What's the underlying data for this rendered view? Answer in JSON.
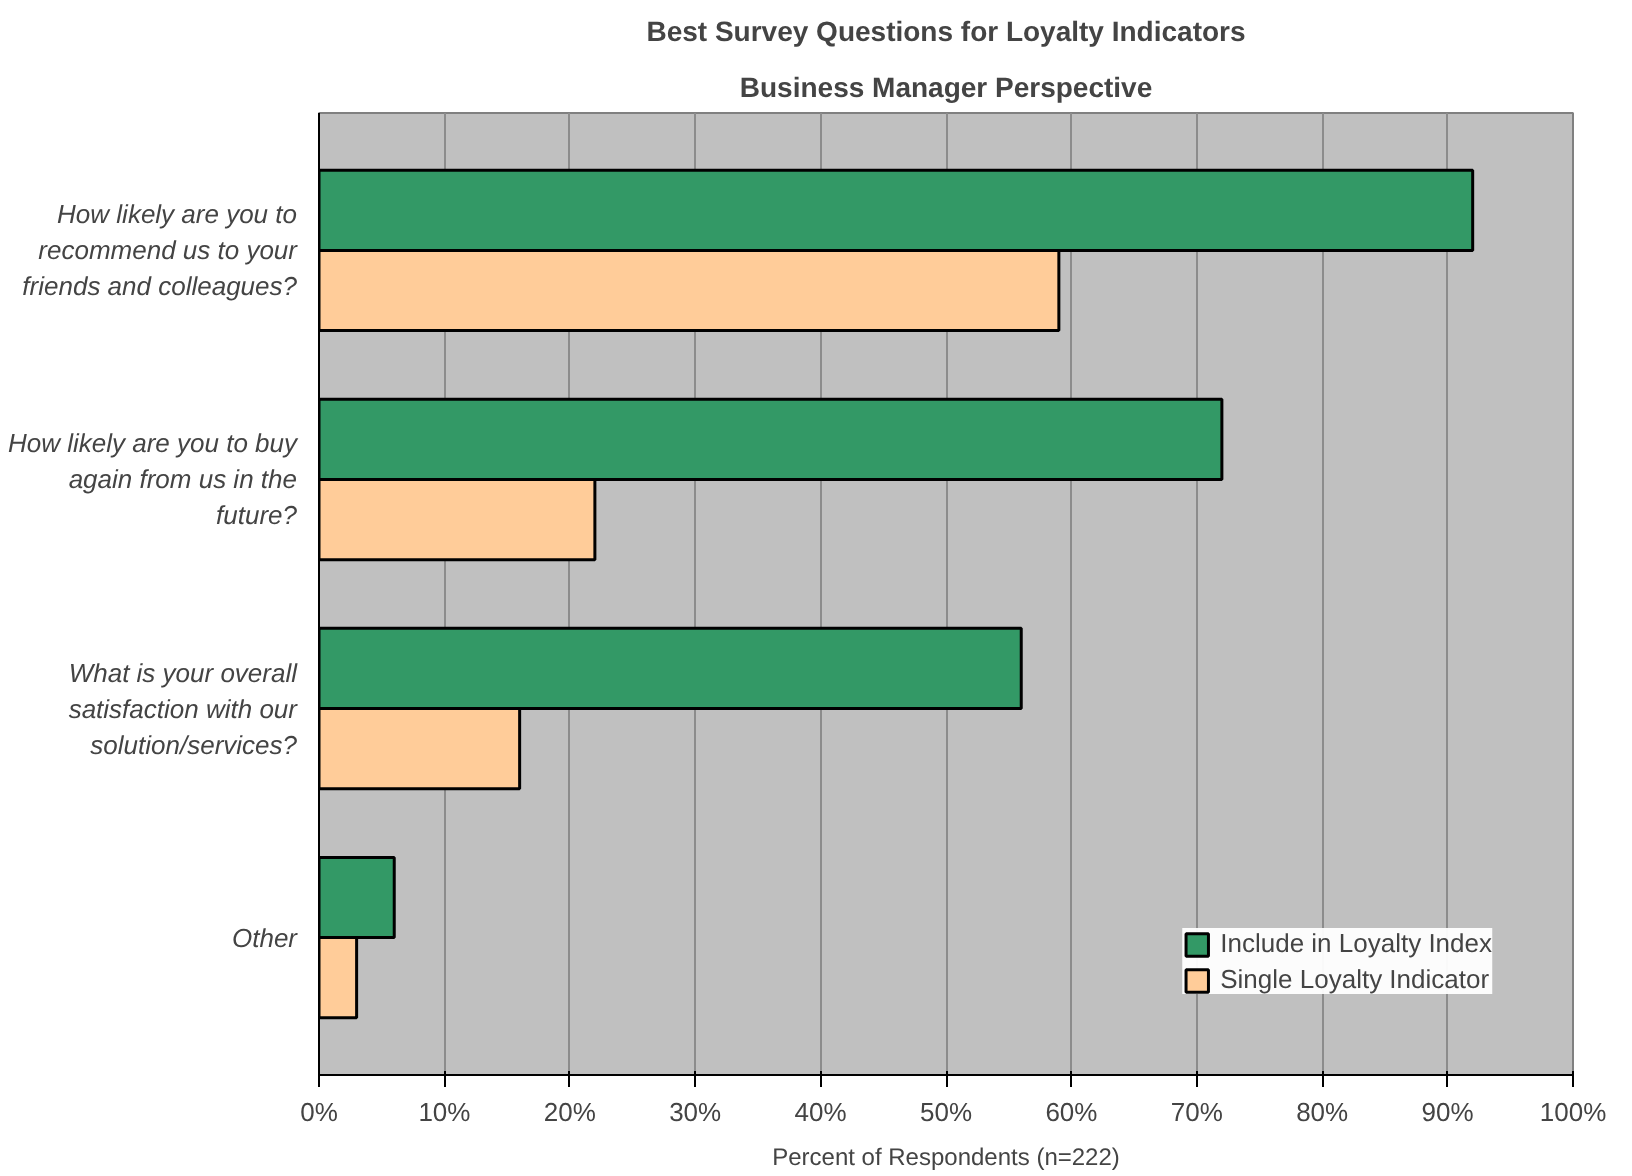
{
  "chart_data": {
    "type": "bar",
    "orientation": "horizontal",
    "title": "Best Survey Questions for Loyalty Indicators",
    "subtitle": "Business Manager Perspective",
    "xlabel": "Percent of Respondents (n=222)",
    "categories": [
      "How likely are you to recommend us to your friends and colleagues?",
      "How likely are you to buy again from us in the future?",
      "What is your overall satisfaction with our solution/services?",
      "Other"
    ],
    "series": [
      {
        "name": "Include in Loyalty Index",
        "color": "#339966",
        "values": [
          92,
          72,
          56,
          6
        ]
      },
      {
        "name": "Single Loyalty Indicator",
        "color": "#ffcc99",
        "values": [
          59,
          22,
          16,
          3
        ]
      }
    ],
    "xlim": [
      0,
      100
    ],
    "xticks": [
      {
        "value": 0,
        "label": "0%"
      },
      {
        "value": 10,
        "label": "10%"
      },
      {
        "value": 20,
        "label": "20%"
      },
      {
        "value": 30,
        "label": "30%"
      },
      {
        "value": 40,
        "label": "40%"
      },
      {
        "value": 50,
        "label": "50%"
      },
      {
        "value": 60,
        "label": "60%"
      },
      {
        "value": 70,
        "label": "70%"
      },
      {
        "value": 80,
        "label": "80%"
      },
      {
        "value": 90,
        "label": "90%"
      },
      {
        "value": 100,
        "label": "100%"
      }
    ],
    "grid": "x",
    "legend": "bottom right"
  }
}
